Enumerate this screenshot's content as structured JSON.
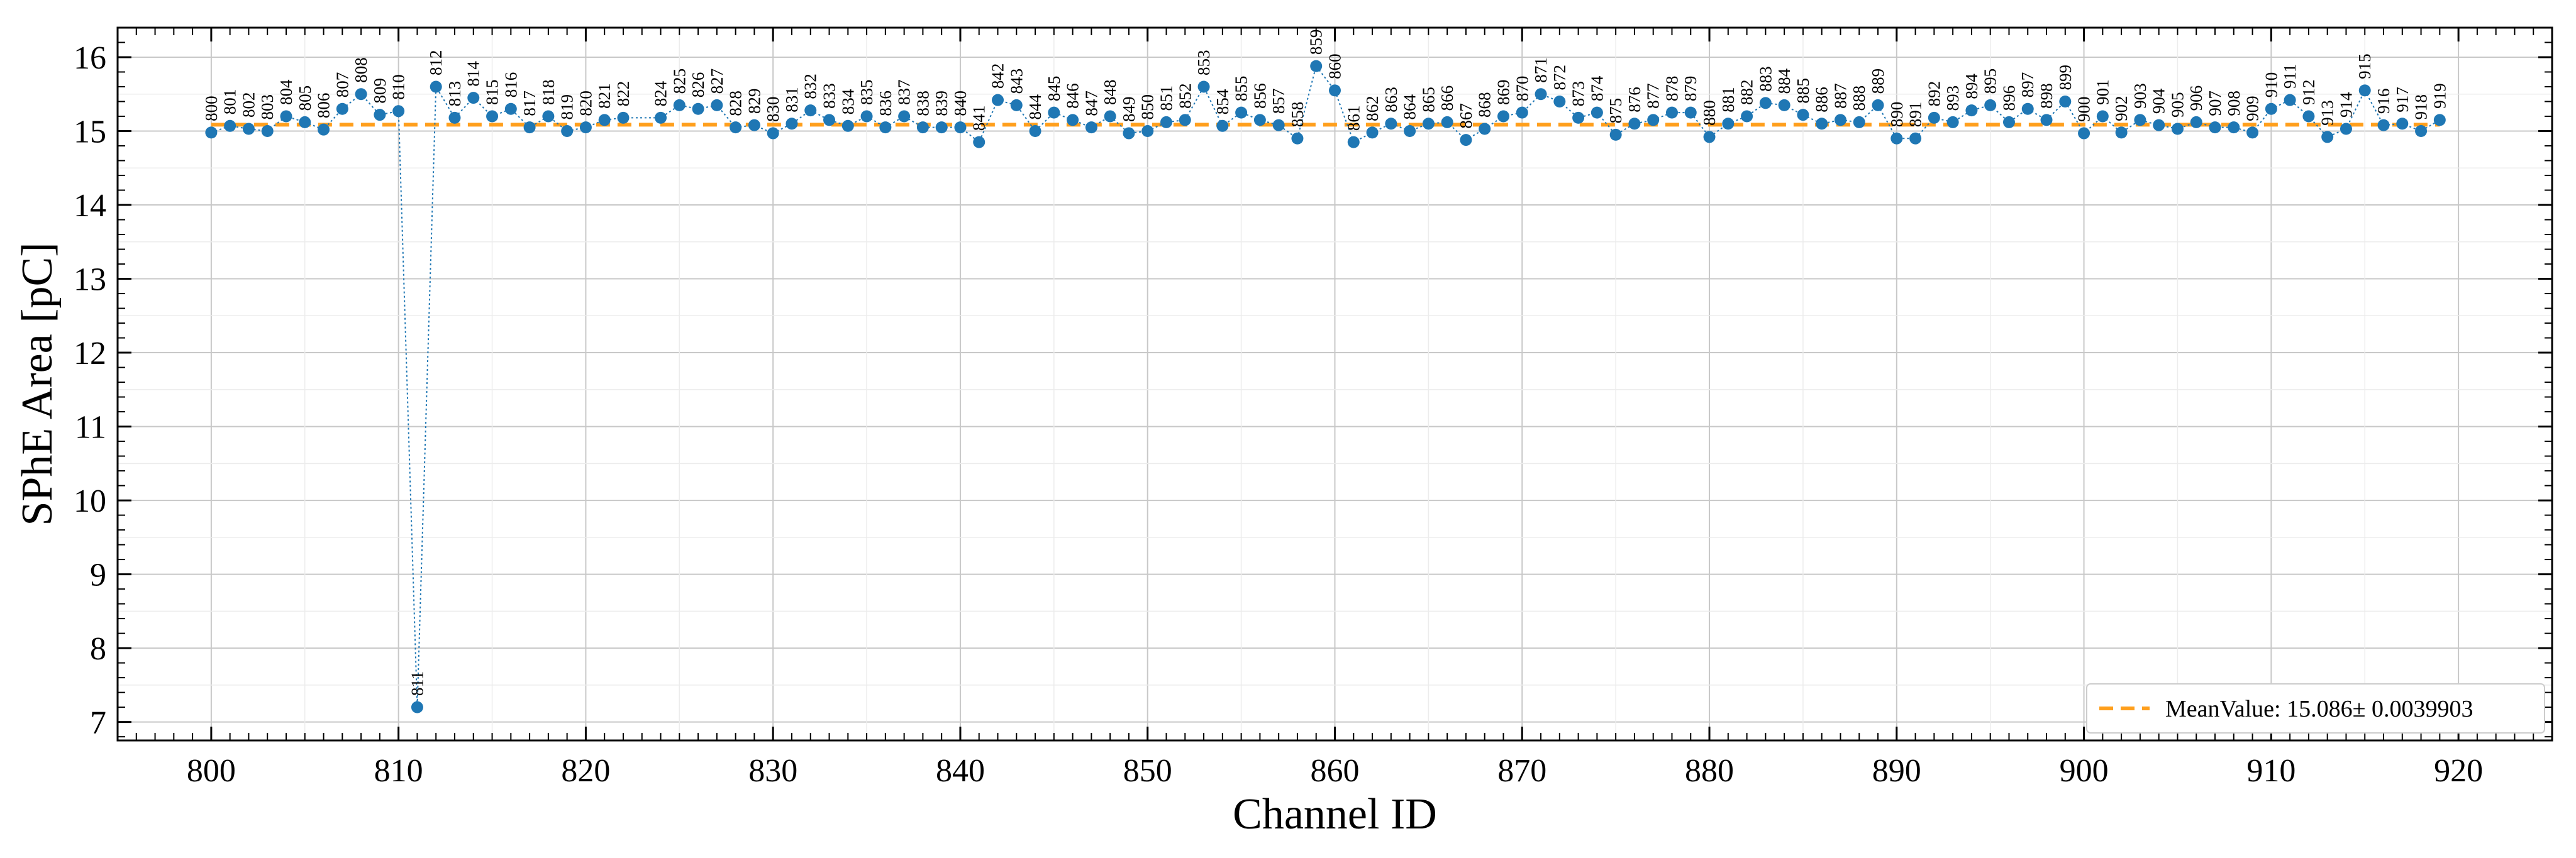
{
  "chart_data": {
    "type": "scatter",
    "xlabel": "Channel ID",
    "ylabel": "SPhE Area [pC]",
    "xlim": [
      795,
      925
    ],
    "ylim": [
      6.75,
      16.4
    ],
    "x_ticks": [
      800,
      810,
      820,
      830,
      840,
      850,
      860,
      870,
      880,
      890,
      900,
      910,
      920
    ],
    "y_ticks": [
      7,
      8,
      9,
      10,
      11,
      12,
      13,
      14,
      15,
      16
    ],
    "grid": true,
    "legend_position": "bottom-right",
    "colors": {
      "points": "#1f77b4",
      "mean_line": "#ff9f1c"
    },
    "mean": {
      "label": "MeanValue: 15.086± 0.0039903",
      "value": 15.086
    },
    "series": [
      {
        "x": [
          800,
          801,
          802,
          803,
          804,
          805,
          806,
          807,
          808,
          809,
          810,
          811,
          812,
          813,
          814,
          815,
          816,
          817,
          818,
          819,
          820,
          821,
          822,
          824,
          825,
          826,
          827,
          828,
          829,
          830,
          831,
          832,
          833,
          834,
          835,
          836,
          837,
          838,
          839,
          840,
          841,
          842,
          843,
          844,
          845,
          846,
          847,
          848,
          849,
          850,
          851,
          852,
          853,
          854,
          855,
          856,
          857,
          858,
          859,
          860,
          861,
          862,
          863,
          864,
          865,
          866,
          867,
          868,
          869,
          870,
          871,
          872,
          873,
          874,
          875,
          876,
          877,
          878,
          879,
          880,
          881,
          882,
          883,
          884,
          885,
          886,
          887,
          888,
          889,
          890,
          891,
          892,
          893,
          894,
          895,
          896,
          897,
          898,
          899,
          900,
          901,
          902,
          903,
          904,
          905,
          906,
          907,
          908,
          909,
          910,
          911,
          912,
          913,
          914,
          915,
          916,
          917,
          918,
          919
        ],
        "y": [
          14.98,
          15.07,
          15.03,
          15.0,
          15.2,
          15.12,
          15.02,
          15.3,
          15.5,
          15.22,
          15.27,
          7.2,
          15.6,
          15.18,
          15.45,
          15.2,
          15.3,
          15.05,
          15.2,
          15.0,
          15.05,
          15.15,
          15.18,
          15.18,
          15.35,
          15.3,
          15.35,
          15.05,
          15.08,
          14.97,
          15.1,
          15.28,
          15.15,
          15.07,
          15.2,
          15.05,
          15.2,
          15.05,
          15.05,
          15.05,
          14.85,
          15.42,
          15.35,
          15.0,
          15.25,
          15.15,
          15.05,
          15.2,
          14.97,
          15.0,
          15.12,
          15.15,
          15.6,
          15.07,
          15.25,
          15.15,
          15.08,
          14.9,
          15.88,
          15.55,
          14.85,
          14.98,
          15.1,
          15.0,
          15.1,
          15.12,
          14.88,
          15.03,
          15.2,
          15.25,
          15.5,
          15.4,
          15.18,
          15.25,
          14.95,
          15.1,
          15.15,
          15.25,
          15.25,
          14.92,
          15.1,
          15.2,
          15.38,
          15.35,
          15.22,
          15.1,
          15.15,
          15.12,
          15.35,
          14.9,
          14.9,
          15.18,
          15.12,
          15.28,
          15.35,
          15.12,
          15.3,
          15.15,
          15.4,
          14.97,
          15.2,
          14.98,
          15.15,
          15.08,
          15.03,
          15.12,
          15.05,
          15.05,
          14.98,
          15.3,
          15.42,
          15.2,
          14.92,
          15.03,
          15.55,
          15.08,
          15.1,
          15.0,
          15.15
        ],
        "labels": [
          "800",
          "801",
          "802",
          "803",
          "804",
          "805",
          "806",
          "807",
          "808",
          "809",
          "810",
          "811",
          "812",
          "813",
          "814",
          "815",
          "816",
          "817",
          "818",
          "819",
          "820",
          "821",
          "822",
          "824",
          "825",
          "826",
          "827",
          "828",
          "829",
          "830",
          "831",
          "832",
          "833",
          "834",
          "835",
          "836",
          "837",
          "838",
          "839",
          "840",
          "841",
          "842",
          "843",
          "844",
          "845",
          "846",
          "847",
          "848",
          "849",
          "850",
          "851",
          "852",
          "853",
          "854",
          "855",
          "856",
          "857",
          "858",
          "859",
          "860",
          "861",
          "862",
          "863",
          "864",
          "865",
          "866",
          "867",
          "868",
          "869",
          "870",
          "871",
          "872",
          "873",
          "874",
          "875",
          "876",
          "877",
          "878",
          "879",
          "880",
          "881",
          "882",
          "883",
          "884",
          "885",
          "886",
          "887",
          "888",
          "889",
          "890",
          "891",
          "892",
          "893",
          "894",
          "895",
          "896",
          "897",
          "898",
          "899",
          "900",
          "901",
          "902",
          "903",
          "904",
          "905",
          "906",
          "907",
          "908",
          "909",
          "910",
          "911",
          "912",
          "913",
          "914",
          "915",
          "916",
          "917",
          "918",
          "919"
        ]
      }
    ]
  }
}
